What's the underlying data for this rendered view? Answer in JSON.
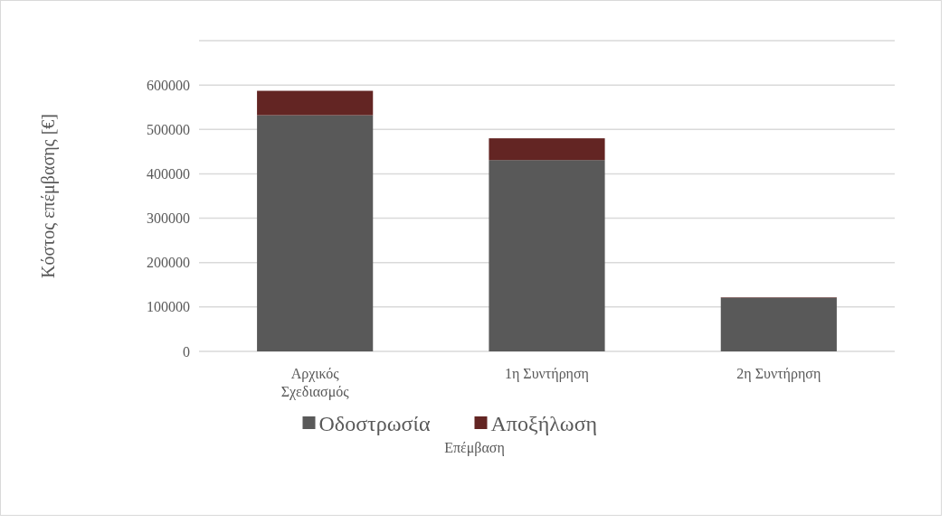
{
  "chart_data": {
    "type": "bar",
    "stacked": true,
    "xlabel": "Επέμβαση",
    "ylabel": "Κόστος επέμβασης [€]",
    "categories": [
      "Αρχικός Σχεδιασμός",
      "1η Συντήρηση",
      "2η Συντήρηση"
    ],
    "series": [
      {
        "name": "Οδοστρωσία",
        "color": "#595959",
        "values": [
          532000,
          431000,
          121000
        ]
      },
      {
        "name": "Αποξήλωση",
        "color": "#632523",
        "values": [
          55000,
          49000,
          1000
        ]
      }
    ],
    "ylim": [
      0,
      700000
    ],
    "yticks": [
      0,
      100000,
      200000,
      300000,
      400000,
      500000,
      600000,
      {
        "value": 700000,
        "label": null
      }
    ],
    "grid": "y",
    "legend": "bottom"
  }
}
